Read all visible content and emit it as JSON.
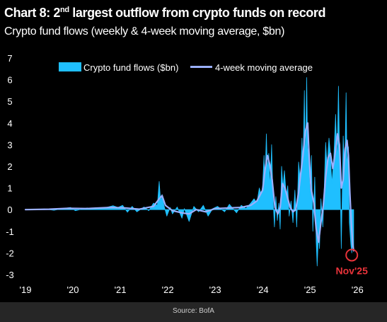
{
  "chart_data": {
    "type": "area",
    "title_main": "Chart 8: 2",
    "title_sup": "nd",
    "title_rest": " largest outflow from crypto funds on record",
    "subtitle": "Crypto fund flows (weekly & 4-week moving average, $bn)",
    "xlabel": "",
    "ylabel": "",
    "ylim": [
      -3,
      7
    ],
    "yticks": [
      "-3",
      "-2",
      "-1",
      "0",
      "1",
      "2",
      "3",
      "4",
      "5",
      "6",
      "7"
    ],
    "xlim": [
      2019.0,
      2026.25
    ],
    "xticks": [
      {
        "year": 2019,
        "label": "'19"
      },
      {
        "year": 2020,
        "label": "'20"
      },
      {
        "year": 2021,
        "label": "'21"
      },
      {
        "year": 2022,
        "label": "'22"
      },
      {
        "year": 2023,
        "label": "'23"
      },
      {
        "year": 2024,
        "label": "'24"
      },
      {
        "year": 2025,
        "label": "'25"
      },
      {
        "year": 2026,
        "label": "'26"
      }
    ],
    "legend_position": "top-center",
    "grid": false,
    "annotation": {
      "label": "Nov'25",
      "x": 2025.88,
      "y": -2.1
    },
    "source": "Source: BofA",
    "colors": {
      "weekly": "#1fbfff",
      "moving_average": "#9bb0ff",
      "annotation": "#e8333a",
      "background": "#000000"
    },
    "series": [
      {
        "name": "Crypto fund flows ($bn)",
        "style": "area",
        "points": [
          [
            2019.0,
            0.0
          ],
          [
            2019.4,
            0.03
          ],
          [
            2019.6,
            -0.03
          ],
          [
            2019.8,
            0.05
          ],
          [
            2019.95,
            0.1
          ],
          [
            2020.05,
            -0.05
          ],
          [
            2020.3,
            0.08
          ],
          [
            2020.5,
            0.04
          ],
          [
            2020.7,
            0.1
          ],
          [
            2020.85,
            0.18
          ],
          [
            2020.95,
            0.1
          ],
          [
            2021.05,
            0.2
          ],
          [
            2021.15,
            -0.12
          ],
          [
            2021.25,
            0.15
          ],
          [
            2021.35,
            -0.1
          ],
          [
            2021.5,
            0.12
          ],
          [
            2021.6,
            -0.05
          ],
          [
            2021.7,
            0.3
          ],
          [
            2021.78,
            0.2
          ],
          [
            2021.82,
            1.3
          ],
          [
            2021.85,
            0.4
          ],
          [
            2021.88,
            0.7
          ],
          [
            2021.92,
            0.2
          ],
          [
            2021.98,
            -0.3
          ],
          [
            2022.05,
            0.1
          ],
          [
            2022.1,
            -0.2
          ],
          [
            2022.2,
            0.12
          ],
          [
            2022.3,
            -0.4
          ],
          [
            2022.35,
            0.05
          ],
          [
            2022.45,
            -0.55
          ],
          [
            2022.55,
            0.15
          ],
          [
            2022.65,
            -0.1
          ],
          [
            2022.75,
            0.2
          ],
          [
            2022.85,
            -0.3
          ],
          [
            2022.95,
            0.05
          ],
          [
            2023.05,
            0.15
          ],
          [
            2023.2,
            -0.1
          ],
          [
            2023.3,
            0.25
          ],
          [
            2023.45,
            -0.15
          ],
          [
            2023.55,
            0.2
          ],
          [
            2023.65,
            0.05
          ],
          [
            2023.75,
            0.3
          ],
          [
            2023.82,
            0.5
          ],
          [
            2023.88,
            0.3
          ],
          [
            2023.93,
            1.0
          ],
          [
            2023.97,
            0.7
          ],
          [
            2024.0,
            1.1
          ],
          [
            2024.03,
            2.5
          ],
          [
            2024.05,
            1.2
          ],
          [
            2024.08,
            3.5
          ],
          [
            2024.1,
            1.8
          ],
          [
            2024.13,
            2.6
          ],
          [
            2024.16,
            1.0
          ],
          [
            2024.19,
            3.0
          ],
          [
            2024.22,
            0.5
          ],
          [
            2024.25,
            -0.8
          ],
          [
            2024.28,
            0.6
          ],
          [
            2024.31,
            -0.5
          ],
          [
            2024.34,
            0.3
          ],
          [
            2024.37,
            -0.9
          ],
          [
            2024.4,
            2.0
          ],
          [
            2024.43,
            1.0
          ],
          [
            2024.46,
            1.8
          ],
          [
            2024.5,
            0.6
          ],
          [
            2024.53,
            1.1
          ],
          [
            2024.56,
            -0.3
          ],
          [
            2024.6,
            0.4
          ],
          [
            2024.64,
            -0.6
          ],
          [
            2024.68,
            0.9
          ],
          [
            2024.72,
            -0.8
          ],
          [
            2024.76,
            2.2
          ],
          [
            2024.8,
            1.2
          ],
          [
            2024.83,
            3.3
          ],
          [
            2024.85,
            1.8
          ],
          [
            2024.88,
            5.5
          ],
          [
            2024.9,
            2.0
          ],
          [
            2024.93,
            6.1
          ],
          [
            2024.95,
            2.5
          ],
          [
            2024.97,
            3.0
          ],
          [
            2025.0,
            0.5
          ],
          [
            2025.03,
            2.5
          ],
          [
            2025.06,
            -1.0
          ],
          [
            2025.1,
            1.5
          ],
          [
            2025.13,
            -1.5
          ],
          [
            2025.15,
            -2.6
          ],
          [
            2025.18,
            -1.0
          ],
          [
            2025.2,
            -1.8
          ],
          [
            2025.23,
            0.5
          ],
          [
            2025.27,
            -0.8
          ],
          [
            2025.3,
            1.0
          ],
          [
            2025.33,
            3.1
          ],
          [
            2025.36,
            2.0
          ],
          [
            2025.4,
            3.3
          ],
          [
            2025.43,
            2.6
          ],
          [
            2025.46,
            1.2
          ],
          [
            2025.5,
            2.3
          ],
          [
            2025.54,
            4.4
          ],
          [
            2025.57,
            2.1
          ],
          [
            2025.6,
            5.7
          ],
          [
            2025.63,
            1.9
          ],
          [
            2025.66,
            -1.8
          ],
          [
            2025.7,
            3.4
          ],
          [
            2025.73,
            1.6
          ],
          [
            2025.76,
            5.4
          ],
          [
            2025.78,
            2.0
          ],
          [
            2025.81,
            2.9
          ],
          [
            2025.83,
            -0.6
          ],
          [
            2025.86,
            -1.6
          ],
          [
            2025.88,
            -2.0
          ],
          [
            2025.9,
            -1.0
          ],
          [
            2025.92,
            -1.9
          ]
        ]
      },
      {
        "name": "4-week moving average",
        "style": "line",
        "points": [
          [
            2019.0,
            0.0
          ],
          [
            2019.5,
            0.02
          ],
          [
            2019.9,
            0.06
          ],
          [
            2020.3,
            0.05
          ],
          [
            2020.8,
            0.1
          ],
          [
            2021.1,
            0.08
          ],
          [
            2021.4,
            0.02
          ],
          [
            2021.7,
            0.15
          ],
          [
            2021.82,
            0.5
          ],
          [
            2021.88,
            0.65
          ],
          [
            2021.95,
            0.2
          ],
          [
            2022.1,
            -0.05
          ],
          [
            2022.3,
            -0.15
          ],
          [
            2022.45,
            -0.2
          ],
          [
            2022.6,
            0.0
          ],
          [
            2022.8,
            -0.1
          ],
          [
            2023.0,
            0.05
          ],
          [
            2023.3,
            0.08
          ],
          [
            2023.55,
            0.1
          ],
          [
            2023.75,
            0.2
          ],
          [
            2023.88,
            0.4
          ],
          [
            2024.0,
            0.9
          ],
          [
            2024.05,
            1.8
          ],
          [
            2024.1,
            2.5
          ],
          [
            2024.15,
            2.1
          ],
          [
            2024.2,
            1.4
          ],
          [
            2024.26,
            0.1
          ],
          [
            2024.32,
            -0.2
          ],
          [
            2024.37,
            0.1
          ],
          [
            2024.42,
            1.2
          ],
          [
            2024.47,
            1.0
          ],
          [
            2024.52,
            0.6
          ],
          [
            2024.58,
            0.1
          ],
          [
            2024.64,
            -0.1
          ],
          [
            2024.7,
            0.0
          ],
          [
            2024.76,
            0.8
          ],
          [
            2024.8,
            1.6
          ],
          [
            2024.85,
            2.5
          ],
          [
            2024.9,
            3.6
          ],
          [
            2024.95,
            4.0
          ],
          [
            2024.98,
            2.5
          ],
          [
            2025.02,
            1.0
          ],
          [
            2025.08,
            0.3
          ],
          [
            2025.13,
            -0.9
          ],
          [
            2025.18,
            -1.5
          ],
          [
            2025.23,
            -0.6
          ],
          [
            2025.28,
            0.2
          ],
          [
            2025.33,
            1.5
          ],
          [
            2025.38,
            2.4
          ],
          [
            2025.43,
            2.6
          ],
          [
            2025.48,
            1.9
          ],
          [
            2025.53,
            2.6
          ],
          [
            2025.58,
            3.5
          ],
          [
            2025.62,
            3.0
          ],
          [
            2025.66,
            1.0
          ],
          [
            2025.7,
            1.4
          ],
          [
            2025.74,
            2.8
          ],
          [
            2025.78,
            3.2
          ],
          [
            2025.81,
            2.5
          ],
          [
            2025.84,
            0.8
          ],
          [
            2025.87,
            -0.6
          ],
          [
            2025.9,
            -1.6
          ],
          [
            2025.92,
            -1.9
          ]
        ]
      }
    ]
  }
}
